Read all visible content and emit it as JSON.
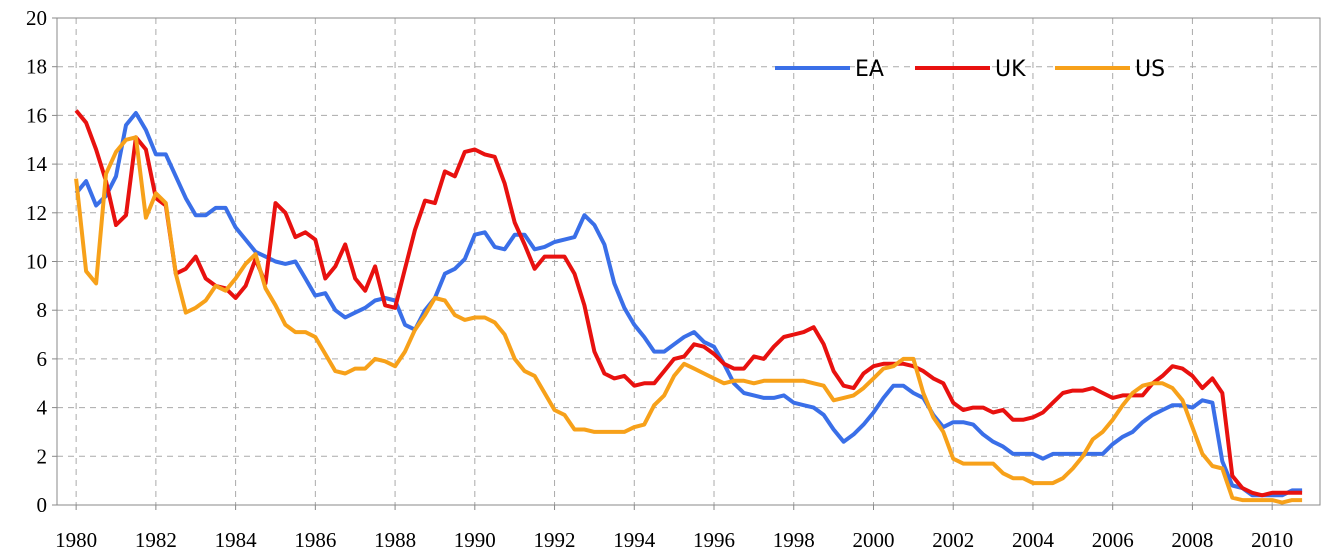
{
  "chart_data": {
    "type": "line",
    "x": [
      1980,
      1980.25,
      1980.5,
      1980.75,
      1981,
      1981.25,
      1981.5,
      1981.75,
      1982,
      1982.25,
      1982.5,
      1982.75,
      1983,
      1983.25,
      1983.5,
      1983.75,
      1984,
      1984.25,
      1984.5,
      1984.75,
      1985,
      1985.25,
      1985.5,
      1985.75,
      1986,
      1986.25,
      1986.5,
      1986.75,
      1987,
      1987.25,
      1987.5,
      1987.75,
      1988,
      1988.25,
      1988.5,
      1988.75,
      1989,
      1989.25,
      1989.5,
      1989.75,
      1990,
      1990.25,
      1990.5,
      1990.75,
      1991,
      1991.25,
      1991.5,
      1991.75,
      1992,
      1992.25,
      1992.5,
      1992.75,
      1993,
      1993.25,
      1993.5,
      1993.75,
      1994,
      1994.25,
      1994.5,
      1994.75,
      1995,
      1995.25,
      1995.5,
      1995.75,
      1996,
      1996.25,
      1996.5,
      1996.75,
      1997,
      1997.25,
      1997.5,
      1997.75,
      1998,
      1998.25,
      1998.5,
      1998.75,
      1999,
      1999.25,
      1999.5,
      1999.75,
      2000,
      2000.25,
      2000.5,
      2000.75,
      2001,
      2001.25,
      2001.5,
      2001.75,
      2002,
      2002.25,
      2002.5,
      2002.75,
      2003,
      2003.25,
      2003.5,
      2003.75,
      2004,
      2004.25,
      2004.5,
      2004.75,
      2005,
      2005.25,
      2005.5,
      2005.75,
      2006,
      2006.25,
      2006.5,
      2006.75,
      2007,
      2007.25,
      2007.5,
      2007.75,
      2008,
      2008.25,
      2008.5,
      2008.75,
      2009,
      2009.25,
      2009.5,
      2009.75,
      2010,
      2010.25,
      2010.5,
      2010.75
    ],
    "series": [
      {
        "name": "EA",
        "color": "#3a6fe8",
        "values": [
          12.8,
          13.3,
          12.3,
          12.7,
          13.5,
          15.6,
          16.1,
          15.4,
          14.4,
          14.4,
          13.5,
          12.6,
          11.9,
          11.9,
          12.2,
          12.2,
          11.4,
          10.9,
          10.4,
          10.2,
          10.0,
          9.9,
          10.0,
          9.3,
          8.6,
          8.7,
          8.0,
          7.7,
          7.9,
          8.1,
          8.4,
          8.5,
          8.4,
          7.4,
          7.2,
          8.0,
          8.5,
          9.5,
          9.7,
          10.1,
          11.1,
          11.2,
          10.6,
          10.5,
          11.1,
          11.1,
          10.5,
          10.6,
          10.8,
          10.9,
          11.0,
          11.9,
          11.5,
          10.7,
          9.1,
          8.1,
          7.4,
          6.9,
          6.3,
          6.3,
          6.6,
          6.9,
          7.1,
          6.7,
          6.5,
          5.8,
          5.0,
          4.6,
          4.5,
          4.4,
          4.4,
          4.5,
          4.2,
          4.1,
          4.0,
          3.7,
          3.1,
          2.6,
          2.9,
          3.3,
          3.8,
          4.4,
          4.9,
          4.9,
          4.6,
          4.4,
          3.7,
          3.2,
          3.4,
          3.4,
          3.3,
          2.9,
          2.6,
          2.4,
          2.1,
          2.1,
          2.1,
          1.9,
          2.1,
          2.1,
          2.1,
          2.1,
          2.1,
          2.1,
          2.5,
          2.8,
          3.0,
          3.4,
          3.7,
          3.9,
          4.1,
          4.1,
          4.0,
          4.3,
          4.2,
          1.8,
          0.8,
          0.7,
          0.4,
          0.4,
          0.4,
          0.4,
          0.6,
          0.6
        ]
      },
      {
        "name": "UK",
        "color": "#e8110f",
        "values": [
          16.2,
          15.7,
          14.6,
          13.3,
          11.5,
          11.9,
          15.1,
          14.6,
          12.6,
          12.3,
          9.5,
          9.7,
          10.2,
          9.3,
          9.0,
          8.9,
          8.5,
          9.0,
          10.1,
          9.1,
          12.4,
          12.0,
          11.0,
          11.2,
          10.9,
          9.3,
          9.8,
          10.7,
          9.3,
          8.8,
          9.8,
          8.2,
          8.1,
          9.7,
          11.3,
          12.5,
          12.4,
          13.7,
          13.5,
          14.5,
          14.6,
          14.4,
          14.3,
          13.2,
          11.6,
          10.7,
          9.7,
          10.2,
          10.2,
          10.2,
          9.5,
          8.2,
          6.3,
          5.4,
          5.2,
          5.3,
          4.9,
          5.0,
          5.0,
          5.5,
          6.0,
          6.1,
          6.6,
          6.5,
          6.2,
          5.8,
          5.6,
          5.6,
          6.1,
          6.0,
          6.5,
          6.9,
          7.0,
          7.1,
          7.3,
          6.6,
          5.5,
          4.9,
          4.8,
          5.4,
          5.7,
          5.8,
          5.8,
          5.8,
          5.7,
          5.5,
          5.2,
          5.0,
          4.2,
          3.9,
          4.0,
          4.0,
          3.8,
          3.9,
          3.5,
          3.5,
          3.6,
          3.8,
          4.2,
          4.6,
          4.7,
          4.7,
          4.8,
          4.6,
          4.4,
          4.5,
          4.5,
          4.5,
          5.0,
          5.3,
          5.7,
          5.6,
          5.3,
          4.8,
          5.2,
          4.6,
          1.2,
          0.7,
          0.5,
          0.4,
          0.5,
          0.5,
          0.5,
          0.5
        ]
      },
      {
        "name": "US",
        "color": "#f7a11a",
        "values": [
          13.4,
          9.6,
          9.1,
          13.6,
          14.5,
          15.0,
          15.1,
          11.8,
          12.8,
          12.4,
          9.5,
          7.9,
          8.1,
          8.4,
          9.0,
          8.8,
          9.3,
          9.9,
          10.3,
          8.9,
          8.2,
          7.4,
          7.1,
          7.1,
          6.9,
          6.2,
          5.5,
          5.4,
          5.6,
          5.6,
          6.0,
          5.9,
          5.7,
          6.3,
          7.2,
          7.8,
          8.5,
          8.4,
          7.8,
          7.6,
          7.7,
          7.7,
          7.5,
          7.0,
          6.0,
          5.5,
          5.3,
          4.6,
          3.9,
          3.7,
          3.1,
          3.1,
          3.0,
          3.0,
          3.0,
          3.0,
          3.2,
          3.3,
          4.1,
          4.5,
          5.3,
          5.8,
          5.6,
          5.4,
          5.2,
          5.0,
          5.1,
          5.1,
          5.0,
          5.1,
          5.1,
          5.1,
          5.1,
          5.1,
          5.0,
          4.9,
          4.3,
          4.4,
          4.5,
          4.8,
          5.2,
          5.6,
          5.7,
          6.0,
          6.0,
          4.6,
          3.6,
          3.0,
          1.9,
          1.7,
          1.7,
          1.7,
          1.7,
          1.3,
          1.1,
          1.1,
          0.9,
          0.9,
          0.9,
          1.1,
          1.5,
          2.0,
          2.7,
          3.0,
          3.5,
          4.1,
          4.6,
          4.9,
          5.0,
          5.0,
          4.8,
          4.3,
          3.2,
          2.1,
          1.6,
          1.5,
          0.3,
          0.2,
          0.2,
          0.2,
          0.2,
          0.1,
          0.2,
          0.2
        ]
      }
    ],
    "xlim": [
      1979.52,
      2011.2
    ],
    "xticks": [
      1980,
      1982,
      1984,
      1986,
      1988,
      1990,
      1992,
      1994,
      1996,
      1998,
      2000,
      2002,
      2004,
      2006,
      2008,
      2010
    ],
    "ylim": [
      0,
      20
    ],
    "yticks": [
      0,
      2,
      4,
      6,
      8,
      10,
      12,
      14,
      16,
      18,
      20
    ],
    "grid": true,
    "legend": "upper right"
  }
}
